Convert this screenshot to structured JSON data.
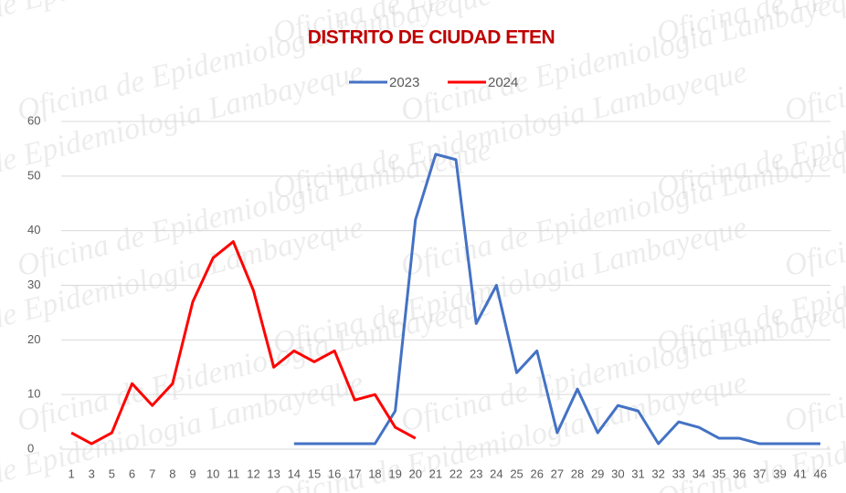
{
  "chart_data": {
    "type": "line",
    "title": "DISTRITO DE CIUDAD ETEN",
    "watermark": "Oficina de Epidemiologia Lambayeque",
    "categories": [
      "1",
      "3",
      "5",
      "6",
      "7",
      "8",
      "9",
      "10",
      "11",
      "12",
      "13",
      "14",
      "15",
      "16",
      "17",
      "18",
      "19",
      "20",
      "21",
      "22",
      "23",
      "24",
      "25",
      "26",
      "27",
      "28",
      "29",
      "30",
      "31",
      "32",
      "33",
      "34",
      "35",
      "36",
      "37",
      "39",
      "41",
      "46"
    ],
    "series": [
      {
        "name": "2023",
        "color": "#4472c4",
        "values": [
          null,
          null,
          null,
          null,
          null,
          null,
          null,
          null,
          null,
          null,
          null,
          1,
          1,
          1,
          1,
          1,
          7,
          42,
          54,
          53,
          23,
          30,
          14,
          18,
          3,
          11,
          3,
          8,
          7,
          1,
          5,
          4,
          2,
          2,
          1,
          1,
          1,
          1
        ]
      },
      {
        "name": "2024",
        "color": "#ff0000",
        "values": [
          3,
          1,
          3,
          12,
          8,
          12,
          27,
          35,
          38,
          29,
          15,
          18,
          16,
          18,
          9,
          10,
          4,
          2,
          null,
          null,
          null,
          null,
          null,
          null,
          null,
          null,
          null,
          null,
          null,
          null,
          null,
          null,
          null,
          null,
          null,
          null,
          null,
          null
        ]
      }
    ],
    "ylim": [
      0,
      60
    ],
    "yticks": [
      0,
      10,
      20,
      30,
      40,
      50,
      60
    ],
    "grid": true,
    "legend": "top"
  }
}
